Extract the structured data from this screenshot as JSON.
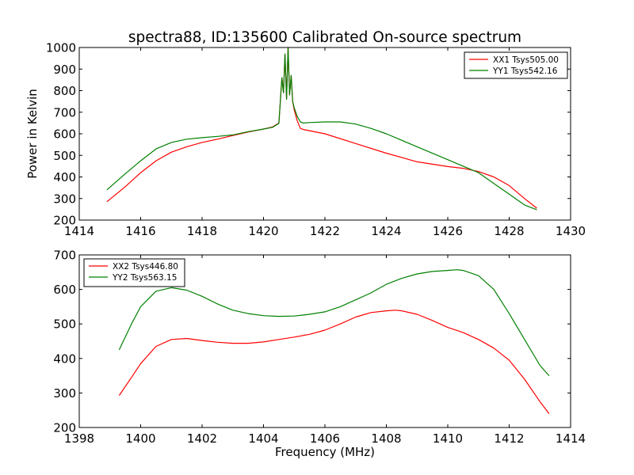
{
  "figure_title": "spectra88, ID:135600 Calibrated On-source spectrum",
  "chart_data": [
    {
      "type": "line",
      "title": "spectra88, ID:135600 Calibrated On-source spectrum",
      "xlabel": "",
      "ylabel": "Power in Kelvin",
      "xlim": [
        1414,
        1430
      ],
      "ylim": [
        200,
        1000
      ],
      "xticks": [
        1414,
        1416,
        1418,
        1420,
        1422,
        1424,
        1426,
        1428,
        1430
      ],
      "yticks": [
        200,
        300,
        400,
        500,
        600,
        700,
        800,
        900,
        1000
      ],
      "grid": false,
      "legend_position": "top-right",
      "series": [
        {
          "name": "XX1 Tsys505.00",
          "color": "#ff0000",
          "x": [
            1414.9,
            1415.5,
            1416.0,
            1416.5,
            1417.0,
            1417.5,
            1418.0,
            1418.5,
            1419.0,
            1419.5,
            1420.0,
            1420.3,
            1420.5,
            1420.6,
            1420.65,
            1420.7,
            1420.75,
            1420.8,
            1420.85,
            1420.9,
            1420.95,
            1421.0,
            1421.1,
            1421.2,
            1421.3,
            1422.0,
            1423.0,
            1424.0,
            1425.0,
            1426.0,
            1426.5,
            1427.0,
            1427.5,
            1428.0,
            1428.5,
            1428.9
          ],
          "y": [
            285,
            355,
            420,
            475,
            515,
            540,
            560,
            575,
            592,
            608,
            622,
            632,
            650,
            860,
            790,
            970,
            760,
            1000,
            780,
            870,
            750,
            710,
            660,
            625,
            620,
            600,
            555,
            510,
            470,
            448,
            440,
            425,
            400,
            360,
            300,
            255
          ]
        },
        {
          "name": "YY1 Tsys542.16",
          "color": "#008000",
          "x": [
            1414.9,
            1415.5,
            1416.0,
            1416.5,
            1417.0,
            1417.5,
            1418.0,
            1418.5,
            1419.0,
            1419.5,
            1420.0,
            1420.3,
            1420.5,
            1420.6,
            1420.65,
            1420.7,
            1420.75,
            1420.8,
            1420.85,
            1420.9,
            1420.95,
            1421.0,
            1421.1,
            1421.2,
            1421.3,
            1421.5,
            1422.0,
            1422.5,
            1423.0,
            1423.5,
            1424.0,
            1425.0,
            1426.0,
            1426.5,
            1427.0,
            1427.5,
            1428.0,
            1428.5,
            1428.9
          ],
          "y": [
            340,
            415,
            475,
            530,
            560,
            575,
            582,
            588,
            595,
            610,
            622,
            630,
            648,
            860,
            790,
            970,
            760,
            1000,
            780,
            870,
            750,
            720,
            680,
            655,
            650,
            652,
            655,
            655,
            645,
            625,
            600,
            540,
            480,
            450,
            420,
            370,
            320,
            270,
            248
          ]
        }
      ]
    },
    {
      "type": "line",
      "title": "",
      "xlabel": "Frequency (MHz)",
      "ylabel": "",
      "xlim": [
        1398,
        1414
      ],
      "ylim": [
        200,
        700
      ],
      "xticks": [
        1398,
        1400,
        1402,
        1404,
        1406,
        1408,
        1410,
        1412,
        1414
      ],
      "yticks": [
        200,
        300,
        400,
        500,
        600,
        700
      ],
      "grid": false,
      "legend_position": "top-left",
      "series": [
        {
          "name": "XX2 Tsys446.80",
          "color": "#ff0000",
          "x": [
            1399.3,
            1399.7,
            1400.0,
            1400.5,
            1401.0,
            1401.5,
            1402.0,
            1402.5,
            1403.0,
            1403.5,
            1404.0,
            1404.5,
            1405.0,
            1405.5,
            1406.0,
            1406.5,
            1407.0,
            1407.5,
            1408.0,
            1408.3,
            1408.5,
            1409.0,
            1409.5,
            1410.0,
            1410.5,
            1411.0,
            1411.5,
            1412.0,
            1412.5,
            1413.0,
            1413.3
          ],
          "y": [
            293,
            345,
            385,
            435,
            455,
            458,
            452,
            447,
            444,
            444,
            448,
            455,
            462,
            470,
            482,
            500,
            520,
            533,
            538,
            540,
            538,
            528,
            510,
            490,
            475,
            455,
            430,
            395,
            340,
            275,
            240
          ]
        },
        {
          "name": "YY2 Tsys563.15",
          "color": "#008000",
          "x": [
            1399.3,
            1399.7,
            1400.0,
            1400.5,
            1401.0,
            1401.5,
            1402.0,
            1402.5,
            1403.0,
            1403.5,
            1404.0,
            1404.5,
            1405.0,
            1405.5,
            1406.0,
            1406.5,
            1407.0,
            1407.5,
            1408.0,
            1408.5,
            1409.0,
            1409.5,
            1410.0,
            1410.3,
            1410.5,
            1411.0,
            1411.5,
            1412.0,
            1412.5,
            1413.0,
            1413.3
          ],
          "y": [
            425,
            500,
            550,
            595,
            605,
            598,
            580,
            558,
            540,
            530,
            524,
            522,
            523,
            528,
            535,
            550,
            570,
            590,
            615,
            632,
            645,
            652,
            655,
            657,
            655,
            640,
            600,
            530,
            455,
            380,
            350
          ]
        }
      ]
    }
  ]
}
